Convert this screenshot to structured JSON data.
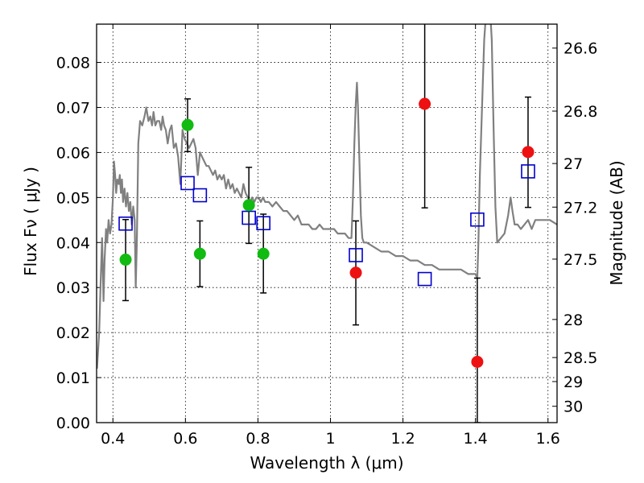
{
  "chart_data": {
    "type": "scatter",
    "title": "",
    "xlabel": "Wavelength  λ (μm)",
    "ylabel": "Flux  Fν  ( μJy )",
    "ylabel_right": "Magnitude (AB)",
    "xlim": [
      0.355,
      1.625
    ],
    "ylim": [
      0.0,
      0.0885
    ],
    "grid": true,
    "x_ticks": [
      {
        "v": 0.4,
        "label": "0.4"
      },
      {
        "v": 0.6,
        "label": "0.6"
      },
      {
        "v": 0.8,
        "label": "0.8"
      },
      {
        "v": 1.0,
        "label": "1"
      },
      {
        "v": 1.2,
        "label": "1.2"
      },
      {
        "v": 1.4,
        "label": "1.4"
      },
      {
        "v": 1.6,
        "label": "1.6"
      }
    ],
    "y_ticks": [
      {
        "v": 0.0,
        "label": "0.00"
      },
      {
        "v": 0.01,
        "label": "0.01"
      },
      {
        "v": 0.02,
        "label": "0.02"
      },
      {
        "v": 0.03,
        "label": "0.03"
      },
      {
        "v": 0.04,
        "label": "0.04"
      },
      {
        "v": 0.05,
        "label": "0.05"
      },
      {
        "v": 0.06,
        "label": "0.06"
      },
      {
        "v": 0.07,
        "label": "0.07"
      },
      {
        "v": 0.08,
        "label": "0.08"
      }
    ],
    "mag_ticks": [
      {
        "mag": 26.6,
        "label": "26.6"
      },
      {
        "mag": 26.8,
        "label": "26.8"
      },
      {
        "mag": 27.0,
        "label": "27"
      },
      {
        "mag": 27.2,
        "label": "27.2"
      },
      {
        "mag": 27.5,
        "label": "27.5"
      },
      {
        "mag": 28.0,
        "label": "28"
      },
      {
        "mag": 28.5,
        "label": "28.5"
      },
      {
        "mag": 29.0,
        "label": "29"
      },
      {
        "mag": 30.0,
        "label": "30"
      }
    ],
    "colors": {
      "model": "#808080",
      "green": "#11bb11",
      "red": "#ee1111",
      "box": "#0000cc",
      "error": "#000000"
    },
    "series": [
      {
        "kind": "model-line",
        "points": [
          [
            0.356,
            0.012
          ],
          [
            0.362,
            0.02
          ],
          [
            0.366,
            0.031
          ],
          [
            0.37,
            0.041
          ],
          [
            0.374,
            0.027
          ],
          [
            0.377,
            0.036
          ],
          [
            0.381,
            0.043
          ],
          [
            0.384,
            0.04
          ],
          [
            0.388,
            0.045
          ],
          [
            0.392,
            0.042
          ],
          [
            0.396,
            0.044
          ],
          [
            0.4,
            0.05
          ],
          [
            0.403,
            0.058
          ],
          [
            0.406,
            0.055
          ],
          [
            0.409,
            0.051
          ],
          [
            0.412,
            0.054
          ],
          [
            0.416,
            0.053
          ],
          [
            0.419,
            0.055
          ],
          [
            0.422,
            0.051
          ],
          [
            0.425,
            0.054
          ],
          [
            0.428,
            0.049
          ],
          [
            0.432,
            0.052
          ],
          [
            0.436,
            0.048
          ],
          [
            0.44,
            0.051
          ],
          [
            0.444,
            0.047
          ],
          [
            0.448,
            0.049
          ],
          [
            0.452,
            0.044
          ],
          [
            0.456,
            0.048
          ],
          [
            0.46,
            0.045
          ],
          [
            0.463,
            0.03
          ],
          [
            0.466,
            0.04
          ],
          [
            0.47,
            0.062
          ],
          [
            0.475,
            0.067
          ],
          [
            0.481,
            0.066
          ],
          [
            0.487,
            0.068
          ],
          [
            0.492,
            0.07
          ],
          [
            0.498,
            0.067
          ],
          [
            0.503,
            0.068
          ],
          [
            0.508,
            0.066
          ],
          [
            0.512,
            0.069
          ],
          [
            0.517,
            0.066
          ],
          [
            0.522,
            0.067
          ],
          [
            0.528,
            0.067
          ],
          [
            0.533,
            0.065
          ],
          [
            0.537,
            0.068
          ],
          [
            0.541,
            0.066
          ],
          [
            0.546,
            0.065
          ],
          [
            0.551,
            0.062
          ],
          [
            0.557,
            0.065
          ],
          [
            0.562,
            0.066
          ],
          [
            0.568,
            0.061
          ],
          [
            0.574,
            0.062
          ],
          [
            0.58,
            0.059
          ],
          [
            0.586,
            0.053
          ],
          [
            0.592,
            0.065
          ],
          [
            0.598,
            0.063
          ],
          [
            0.604,
            0.062
          ],
          [
            0.61,
            0.061
          ],
          [
            0.616,
            0.062
          ],
          [
            0.622,
            0.063
          ],
          [
            0.628,
            0.061
          ],
          [
            0.634,
            0.055
          ],
          [
            0.64,
            0.06
          ],
          [
            0.646,
            0.059
          ],
          [
            0.652,
            0.058
          ],
          [
            0.658,
            0.057
          ],
          [
            0.664,
            0.057
          ],
          [
            0.67,
            0.056
          ],
          [
            0.676,
            0.055
          ],
          [
            0.682,
            0.056
          ],
          [
            0.688,
            0.054
          ],
          [
            0.694,
            0.055
          ],
          [
            0.7,
            0.054
          ],
          [
            0.706,
            0.055
          ],
          [
            0.712,
            0.052
          ],
          [
            0.718,
            0.054
          ],
          [
            0.724,
            0.052
          ],
          [
            0.73,
            0.053
          ],
          [
            0.736,
            0.051
          ],
          [
            0.742,
            0.052
          ],
          [
            0.748,
            0.051
          ],
          [
            0.754,
            0.05
          ],
          [
            0.76,
            0.053
          ],
          [
            0.766,
            0.051
          ],
          [
            0.772,
            0.05
          ],
          [
            0.778,
            0.049
          ],
          [
            0.784,
            0.05
          ],
          [
            0.79,
            0.049
          ],
          [
            0.796,
            0.05
          ],
          [
            0.802,
            0.05
          ],
          [
            0.808,
            0.049
          ],
          [
            0.814,
            0.05
          ],
          [
            0.82,
            0.049
          ],
          [
            0.83,
            0.049
          ],
          [
            0.84,
            0.048
          ],
          [
            0.85,
            0.049
          ],
          [
            0.86,
            0.048
          ],
          [
            0.87,
            0.047
          ],
          [
            0.88,
            0.047
          ],
          [
            0.89,
            0.046
          ],
          [
            0.9,
            0.045
          ],
          [
            0.91,
            0.046
          ],
          [
            0.92,
            0.044
          ],
          [
            0.93,
            0.044
          ],
          [
            0.94,
            0.044
          ],
          [
            0.95,
            0.043
          ],
          [
            0.96,
            0.043
          ],
          [
            0.97,
            0.044
          ],
          [
            0.98,
            0.043
          ],
          [
            0.99,
            0.043
          ],
          [
            1.0,
            0.043
          ],
          [
            1.01,
            0.043
          ],
          [
            1.02,
            0.042
          ],
          [
            1.03,
            0.042
          ],
          [
            1.04,
            0.042
          ],
          [
            1.05,
            0.041
          ],
          [
            1.058,
            0.041
          ],
          [
            1.062,
            0.05
          ],
          [
            1.066,
            0.062
          ],
          [
            1.07,
            0.071
          ],
          [
            1.073,
            0.0755
          ],
          [
            1.076,
            0.07
          ],
          [
            1.08,
            0.058
          ],
          [
            1.084,
            0.046
          ],
          [
            1.088,
            0.041
          ],
          [
            1.092,
            0.04
          ],
          [
            1.1,
            0.04
          ],
          [
            1.12,
            0.039
          ],
          [
            1.14,
            0.038
          ],
          [
            1.16,
            0.038
          ],
          [
            1.18,
            0.037
          ],
          [
            1.2,
            0.037
          ],
          [
            1.22,
            0.036
          ],
          [
            1.24,
            0.036
          ],
          [
            1.26,
            0.035
          ],
          [
            1.28,
            0.035
          ],
          [
            1.3,
            0.034
          ],
          [
            1.32,
            0.034
          ],
          [
            1.34,
            0.034
          ],
          [
            1.36,
            0.034
          ],
          [
            1.38,
            0.033
          ],
          [
            1.4,
            0.033
          ],
          [
            1.405,
            0.032
          ],
          [
            1.408,
            0.04
          ],
          [
            1.412,
            0.055
          ],
          [
            1.418,
            0.07
          ],
          [
            1.424,
            0.085
          ],
          [
            1.43,
            0.092
          ],
          [
            1.44,
            0.092
          ],
          [
            1.445,
            0.085
          ],
          [
            1.45,
            0.065
          ],
          [
            1.455,
            0.048
          ],
          [
            1.46,
            0.04
          ],
          [
            1.47,
            0.041
          ],
          [
            1.48,
            0.042
          ],
          [
            1.49,
            0.046
          ],
          [
            1.497,
            0.05
          ],
          [
            1.502,
            0.047
          ],
          [
            1.508,
            0.044
          ],
          [
            1.516,
            0.044
          ],
          [
            1.525,
            0.043
          ],
          [
            1.535,
            0.044
          ],
          [
            1.545,
            0.045
          ],
          [
            1.555,
            0.043
          ],
          [
            1.565,
            0.045
          ],
          [
            1.575,
            0.045
          ],
          [
            1.59,
            0.045
          ],
          [
            1.605,
            0.045
          ],
          [
            1.625,
            0.044
          ]
        ]
      },
      {
        "kind": "green-points",
        "points": [
          {
            "x": 0.435,
            "y": 0.0362
          },
          {
            "x": 0.606,
            "y": 0.0661
          },
          {
            "x": 0.64,
            "y": 0.0375
          },
          {
            "x": 0.775,
            "y": 0.0483
          },
          {
            "x": 0.815,
            "y": 0.0375
          }
        ]
      },
      {
        "kind": "red-points",
        "points": [
          {
            "x": 1.07,
            "y": 0.0333
          },
          {
            "x": 1.26,
            "y": 0.0708
          },
          {
            "x": 1.405,
            "y": 0.0135
          },
          {
            "x": 1.545,
            "y": 0.0601
          }
        ]
      },
      {
        "kind": "model-boxes",
        "points": [
          {
            "x": 0.435,
            "y": 0.0442
          },
          {
            "x": 0.606,
            "y": 0.0532
          },
          {
            "x": 0.64,
            "y": 0.0505
          },
          {
            "x": 0.775,
            "y": 0.0455
          },
          {
            "x": 0.815,
            "y": 0.0443
          },
          {
            "x": 1.07,
            "y": 0.0372
          },
          {
            "x": 1.26,
            "y": 0.0319
          },
          {
            "x": 1.405,
            "y": 0.0451
          },
          {
            "x": 1.545,
            "y": 0.0558
          }
        ]
      },
      {
        "kind": "error-bars",
        "points": [
          {
            "x": 0.435,
            "low": 0.0271,
            "high": 0.0451
          },
          {
            "x": 0.606,
            "low": 0.0602,
            "high": 0.0719
          },
          {
            "x": 0.64,
            "low": 0.0302,
            "high": 0.0448
          },
          {
            "x": 0.775,
            "low": 0.0398,
            "high": 0.0567
          },
          {
            "x": 0.815,
            "low": 0.0288,
            "high": 0.0463
          },
          {
            "x": 1.07,
            "low": 0.0217,
            "high": 0.0448
          },
          {
            "x": 1.26,
            "low": 0.0477,
            "high": 0.0895
          },
          {
            "x": 1.405,
            "low": 0.0,
            "high": 0.0321
          },
          {
            "x": 1.545,
            "low": 0.0478,
            "high": 0.0723
          }
        ]
      }
    ]
  }
}
